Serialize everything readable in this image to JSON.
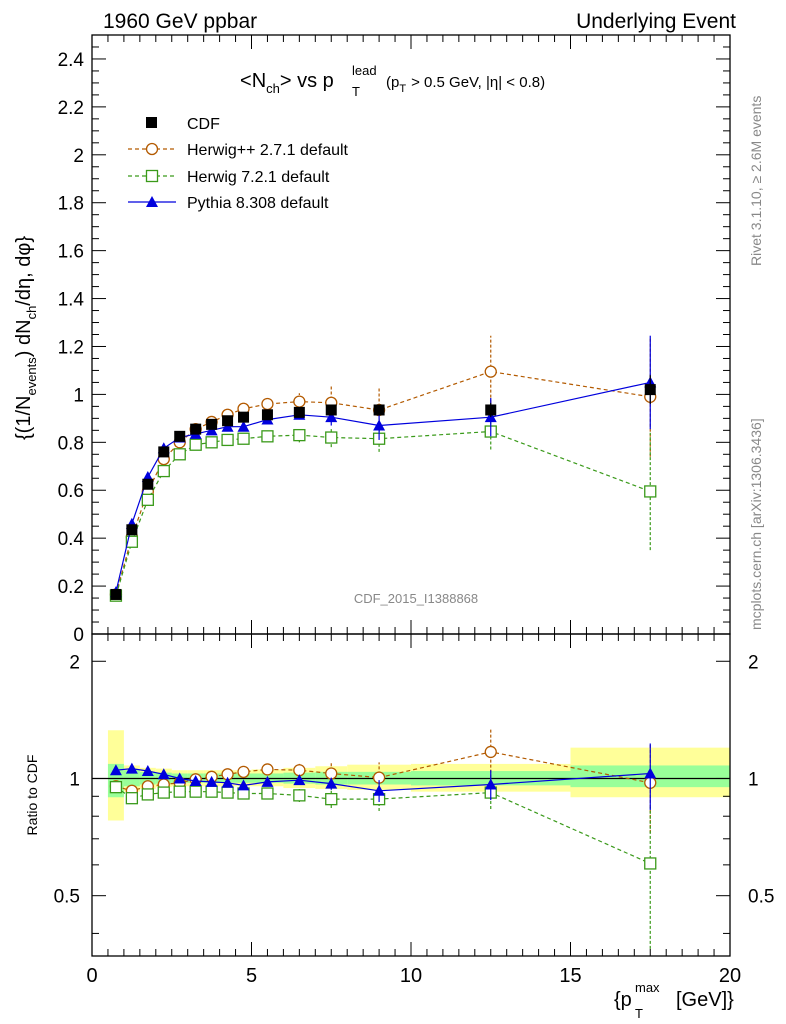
{
  "header": {
    "left": "1960 GeV ppbar",
    "right": "Underlying Event"
  },
  "side_labels": {
    "rivet": "Rivet 3.1.10, ≥ 2.6M events",
    "mcplots": "mcplots.cern.ch [arXiv:1306.3436]"
  },
  "watermark": "CDF_2015_I1388868",
  "colors": {
    "cdf": "#000000",
    "herwigpp": "#b35a00",
    "herwig7": "#3a9a1a",
    "pythia": "#0000dd",
    "band_inner": "#99ff99",
    "band_outer": "#ffff99"
  },
  "chart_data": [
    {
      "type": "scatter",
      "panel": "main",
      "title_parts": {
        "n": "N",
        "ch": "ch",
        "vs": "vs p",
        "lead": "lead",
        "T": "T",
        "cut_p": "(p",
        "cut_rest": "> 0.5 GeV, |η| < 0.8)"
      },
      "ylabel": "{(1/N_events) dN_ch/dη, dφ}",
      "ylabel_parts": {
        "a": "{(1/N",
        "b": "events",
        "c": ") dN",
        "d": "ch",
        "e": "/dη, dφ}"
      },
      "xlim": [
        0,
        20
      ],
      "ylim": [
        0,
        2.5
      ],
      "yticks": [
        0,
        0.2,
        0.4,
        0.6,
        0.8,
        1,
        1.2,
        1.4,
        1.6,
        1.8,
        2,
        2.2,
        2.4
      ],
      "legend_position": "top-left",
      "series": [
        {
          "name": "CDF",
          "style": "data",
          "color_key": "cdf",
          "x": [
            0.75,
            1.25,
            1.75,
            2.25,
            2.75,
            3.25,
            3.75,
            4.25,
            4.75,
            5.5,
            6.5,
            7.5,
            9.0,
            12.5,
            17.5
          ],
          "y": [
            0.165,
            0.435,
            0.625,
            0.76,
            0.825,
            0.855,
            0.875,
            0.89,
            0.905,
            0.915,
            0.925,
            0.935,
            0.935,
            0.935,
            1.02
          ],
          "err": [
            0.005,
            0.01,
            0.01,
            0.01,
            0.01,
            0.01,
            0.01,
            0.01,
            0.01,
            0.01,
            0.01,
            0.01,
            0.02,
            0.03,
            0.06
          ]
        },
        {
          "name": "Herwig++ 2.7.1 default",
          "style": "circle-dashed",
          "color_key": "herwigpp",
          "x": [
            0.75,
            1.25,
            1.75,
            2.25,
            2.75,
            3.25,
            3.75,
            4.25,
            4.75,
            5.5,
            6.5,
            7.5,
            9.0,
            12.5,
            17.5
          ],
          "y": [
            0.165,
            0.405,
            0.595,
            0.73,
            0.8,
            0.855,
            0.885,
            0.915,
            0.94,
            0.96,
            0.97,
            0.965,
            0.935,
            1.095,
            0.99
          ],
          "err": [
            0.005,
            0.01,
            0.01,
            0.01,
            0.01,
            0.01,
            0.01,
            0.015,
            0.015,
            0.02,
            0.035,
            0.07,
            0.09,
            0.15,
            0.25
          ]
        },
        {
          "name": "Herwig 7.2.1 default",
          "style": "square-dashed",
          "color_key": "herwig7",
          "x": [
            0.75,
            1.25,
            1.75,
            2.25,
            2.75,
            3.25,
            3.75,
            4.25,
            4.75,
            5.5,
            6.5,
            7.5,
            9.0,
            12.5,
            17.5
          ],
          "y": [
            0.16,
            0.385,
            0.56,
            0.68,
            0.75,
            0.79,
            0.8,
            0.81,
            0.815,
            0.825,
            0.83,
            0.82,
            0.815,
            0.845,
            0.595
          ],
          "err": [
            0.005,
            0.01,
            0.01,
            0.01,
            0.01,
            0.01,
            0.01,
            0.01,
            0.015,
            0.015,
            0.03,
            0.04,
            0.055,
            0.075,
            0.245
          ]
        },
        {
          "name": "Pythia 8.308 default",
          "style": "triangle-solid",
          "color_key": "pythia",
          "x": [
            0.75,
            1.25,
            1.75,
            2.25,
            2.75,
            3.25,
            3.75,
            4.25,
            4.75,
            5.5,
            6.5,
            7.5,
            9.0,
            12.5,
            17.5
          ],
          "y": [
            0.175,
            0.46,
            0.655,
            0.775,
            0.82,
            0.835,
            0.85,
            0.865,
            0.865,
            0.895,
            0.915,
            0.905,
            0.87,
            0.905,
            1.05
          ],
          "err": [
            0.005,
            0.01,
            0.01,
            0.01,
            0.01,
            0.01,
            0.01,
            0.01,
            0.01,
            0.015,
            0.02,
            0.035,
            0.06,
            0.08,
            0.195
          ]
        }
      ]
    },
    {
      "type": "scatter",
      "panel": "ratio",
      "ylabel": "Ratio to CDF",
      "xlabel": "{p_T^max [GeV]}",
      "xlabel_parts": {
        "a": "{p",
        "b": "T",
        "c": "max",
        "d": "[GeV]}"
      },
      "xlim": [
        0,
        20
      ],
      "ylim": [
        0.35,
        2.35
      ],
      "yscale": "log",
      "xticks": [
        0,
        5,
        10,
        15,
        20
      ],
      "yticks": [
        0.5,
        1,
        2
      ],
      "yticklabels": [
        "0.5",
        "1",
        "2"
      ],
      "bands": [
        {
          "x0": 0.5,
          "x1": 1.0,
          "inner": [
            0.895,
            1.09
          ],
          "outer": [
            0.78,
            1.33
          ]
        },
        {
          "x0": 1.0,
          "x1": 1.5,
          "inner": [
            0.955,
            1.05
          ],
          "outer": [
            0.925,
            1.08
          ]
        },
        {
          "x0": 1.5,
          "x1": 2.0,
          "inner": [
            0.965,
            1.04
          ],
          "outer": [
            0.94,
            1.065
          ]
        },
        {
          "x0": 2.0,
          "x1": 2.5,
          "inner": [
            0.97,
            1.035
          ],
          "outer": [
            0.95,
            1.06
          ]
        },
        {
          "x0": 2.5,
          "x1": 3.0,
          "inner": [
            0.975,
            1.03
          ],
          "outer": [
            0.955,
            1.05
          ]
        },
        {
          "x0": 3.0,
          "x1": 3.5,
          "inner": [
            0.975,
            1.03
          ],
          "outer": [
            0.955,
            1.05
          ]
        },
        {
          "x0": 3.5,
          "x1": 4.0,
          "inner": [
            0.975,
            1.03
          ],
          "outer": [
            0.955,
            1.05
          ]
        },
        {
          "x0": 4.0,
          "x1": 4.5,
          "inner": [
            0.975,
            1.03
          ],
          "outer": [
            0.955,
            1.05
          ]
        },
        {
          "x0": 4.5,
          "x1": 5.0,
          "inner": [
            0.975,
            1.03
          ],
          "outer": [
            0.955,
            1.05
          ]
        },
        {
          "x0": 5.0,
          "x1": 6.0,
          "inner": [
            0.975,
            1.03
          ],
          "outer": [
            0.955,
            1.055
          ]
        },
        {
          "x0": 6.0,
          "x1": 7.0,
          "inner": [
            0.97,
            1.035
          ],
          "outer": [
            0.945,
            1.065
          ]
        },
        {
          "x0": 7.0,
          "x1": 8.0,
          "inner": [
            0.965,
            1.04
          ],
          "outer": [
            0.94,
            1.075
          ]
        },
        {
          "x0": 8.0,
          "x1": 10.0,
          "inner": [
            0.965,
            1.04
          ],
          "outer": [
            0.935,
            1.085
          ]
        },
        {
          "x0": 10.0,
          "x1": 15.0,
          "inner": [
            0.96,
            1.045
          ],
          "outer": [
            0.925,
            1.09
          ]
        },
        {
          "x0": 15.0,
          "x1": 20.0,
          "inner": [
            0.95,
            1.08
          ],
          "outer": [
            0.895,
            1.2
          ]
        }
      ],
      "series": [
        {
          "name": "Herwig++ 2.7.1 default",
          "style": "circle-dashed",
          "color_key": "herwigpp",
          "x": [
            0.75,
            1.25,
            1.75,
            2.25,
            2.75,
            3.25,
            3.75,
            4.25,
            4.75,
            5.5,
            6.5,
            7.5,
            9.0,
            12.5,
            17.5
          ],
          "y": [
            0.955,
            0.93,
            0.955,
            0.965,
            0.975,
            0.995,
            1.01,
            1.025,
            1.04,
            1.055,
            1.05,
            1.03,
            1.005,
            1.17,
            0.975
          ],
          "err": [
            0.01,
            0.01,
            0.01,
            0.01,
            0.01,
            0.01,
            0.01,
            0.015,
            0.015,
            0.02,
            0.04,
            0.075,
            0.095,
            0.165,
            0.25
          ]
        },
        {
          "name": "Herwig 7.2.1 default",
          "style": "square-dashed",
          "color_key": "herwig7",
          "x": [
            0.75,
            1.25,
            1.75,
            2.25,
            2.75,
            3.25,
            3.75,
            4.25,
            4.75,
            5.5,
            6.5,
            7.5,
            9.0,
            12.5,
            17.5
          ],
          "y": [
            0.95,
            0.89,
            0.91,
            0.92,
            0.925,
            0.925,
            0.925,
            0.92,
            0.915,
            0.915,
            0.905,
            0.885,
            0.885,
            0.92,
            0.605
          ],
          "err": [
            0.01,
            0.01,
            0.01,
            0.01,
            0.01,
            0.01,
            0.01,
            0.01,
            0.015,
            0.015,
            0.035,
            0.045,
            0.06,
            0.085,
            0.24
          ]
        },
        {
          "name": "Pythia 8.308 default",
          "style": "triangle-solid",
          "color_key": "pythia",
          "x": [
            0.75,
            1.25,
            1.75,
            2.25,
            2.75,
            3.25,
            3.75,
            4.25,
            4.75,
            5.5,
            6.5,
            7.5,
            9.0,
            12.5,
            17.5
          ],
          "y": [
            1.05,
            1.06,
            1.045,
            1.025,
            1.0,
            0.985,
            0.98,
            0.975,
            0.96,
            0.98,
            0.99,
            0.97,
            0.93,
            0.965,
            1.03
          ],
          "err": [
            0.01,
            0.01,
            0.01,
            0.01,
            0.01,
            0.01,
            0.01,
            0.01,
            0.01,
            0.015,
            0.02,
            0.035,
            0.06,
            0.085,
            0.2
          ]
        }
      ]
    }
  ]
}
